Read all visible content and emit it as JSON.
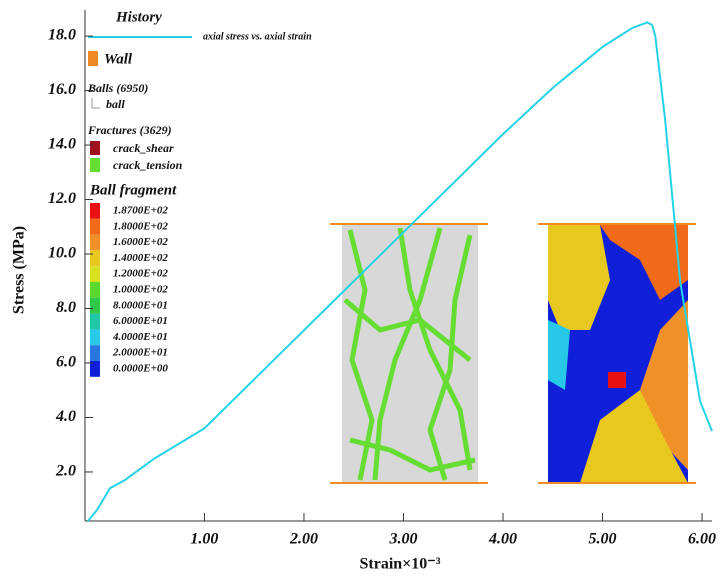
{
  "chart_data": {
    "type": "line",
    "x_label": "Strain×10⁻³",
    "y_label": "Stress (MPa)",
    "legend_title": "History",
    "series": [
      {
        "name": "axial stress vs. axial strain",
        "color": "#22d3e6",
        "x": [
          -0.17,
          -0.08,
          0.05,
          0.2,
          0.5,
          1.0,
          1.5,
          2.0,
          2.5,
          3.0,
          3.5,
          4.0,
          4.5,
          5.0,
          5.3,
          5.45,
          5.5,
          5.53,
          5.63,
          5.78,
          5.98,
          6.1
        ],
        "values": [
          0.2,
          0.6,
          1.4,
          1.7,
          2.5,
          3.6,
          5.4,
          7.2,
          9.0,
          10.8,
          12.6,
          14.4,
          16.1,
          17.6,
          18.3,
          18.5,
          18.4,
          18.0,
          14.9,
          9.0,
          4.6,
          3.5
        ]
      }
    ],
    "wall_label": "Wall",
    "wall_color": "#f08a24",
    "balls_label": "Balls (6950)",
    "ball_label": "ball",
    "fractures_label": "Fractures (3629)",
    "fractures": [
      {
        "name": "crack_shear",
        "color": "#a0101e"
      },
      {
        "name": "crack_tension",
        "color": "#66dd33"
      }
    ],
    "fragment_title": "Ball fragment",
    "fragment_legend": [
      {
        "label": "1.8700E+02",
        "color": "#e81010"
      },
      {
        "label": "1.8000E+02",
        "color": "#f06a1a"
      },
      {
        "label": "1.6000E+02",
        "color": "#f09028"
      },
      {
        "label": "1.4000E+02",
        "color": "#e8c81e"
      },
      {
        "label": "1.2000E+02",
        "color": "#d8e020"
      },
      {
        "label": "1.0000E+02",
        "color": "#5ad830"
      },
      {
        "label": "8.0000E+01",
        "color": "#30c848"
      },
      {
        "label": "6.0000E+01",
        "color": "#20c8a8"
      },
      {
        "label": "4.0000E+01",
        "color": "#28c8e8"
      },
      {
        "label": "2.0000E+01",
        "color": "#2878e0"
      },
      {
        "label": "0.0000E+00",
        "color": "#1020d8"
      }
    ],
    "xlim": [
      -0.2,
      6.1
    ],
    "ylim": [
      0.2,
      18.7
    ],
    "xticks": [
      {
        "value": 1,
        "label": "1.00"
      },
      {
        "value": 2,
        "label": "2.00"
      },
      {
        "value": 3,
        "label": "3.00"
      },
      {
        "value": 4,
        "label": "4.00"
      },
      {
        "value": 5,
        "label": "5.00"
      },
      {
        "value": 6,
        "label": "6.00"
      }
    ],
    "yticks": [
      {
        "value": 2,
        "label": "2.0"
      },
      {
        "value": 4,
        "label": "4.0"
      },
      {
        "value": 6,
        "label": "6.0"
      },
      {
        "value": 8,
        "label": "8.0"
      },
      {
        "value": 10,
        "label": "10.0"
      },
      {
        "value": 12,
        "label": "12.0"
      },
      {
        "value": 14,
        "label": "14.0"
      },
      {
        "value": 16,
        "label": "16.0"
      },
      {
        "value": 18,
        "label": "18.0"
      }
    ],
    "grid": false
  }
}
